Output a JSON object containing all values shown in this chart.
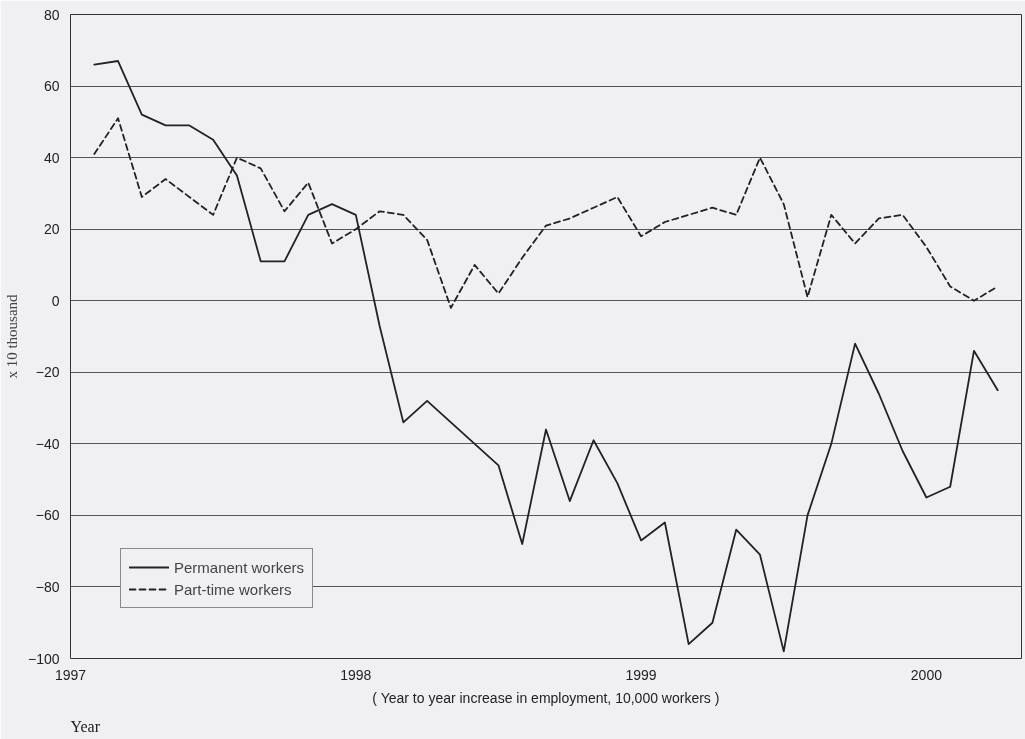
{
  "chart_data": {
    "type": "line",
    "ylabel": "x 10 thousand",
    "xlabel": "Year",
    "annotations": [
      "( Year to year increase in employment, 10,000 workers )"
    ],
    "x": [
      "1997-02",
      "1997-03",
      "1997-04",
      "1997-05",
      "1997-06",
      "1997-07",
      "1997-08",
      "1997-09",
      "1997-10",
      "1997-11",
      "1997-12",
      "1998-01",
      "1998-02",
      "1998-03",
      "1998-04",
      "1998-05",
      "1998-06",
      "1998-07",
      "1998-08",
      "1998-09",
      "1998-10",
      "1998-11",
      "1998-12",
      "1999-01",
      "1999-02",
      "1999-03",
      "1999-04",
      "1999-05",
      "1999-06",
      "1999-07",
      "1999-08",
      "1999-09",
      "1999-10",
      "1999-11",
      "1999-12",
      "2000-01",
      "2000-02",
      "2000-03",
      "2000-04"
    ],
    "series": [
      {
        "name": "Permanent workers",
        "color": "#222222",
        "line_style": "solid",
        "values": [
          66,
          67,
          52,
          49,
          49,
          45,
          35,
          11,
          11,
          24,
          27,
          24,
          -7,
          -34,
          -28,
          -34,
          -40,
          -46,
          -68,
          -36,
          -56,
          -39,
          -51,
          -67,
          -62,
          -96,
          -90,
          -64,
          -71,
          -98,
          -60,
          -40,
          -12,
          -26,
          -42,
          -55,
          -52,
          -14,
          -25
        ]
      },
      {
        "name": "Part-time workers",
        "color": "#222222",
        "line_style": "dashed",
        "values": [
          41,
          51,
          29,
          34,
          29,
          24,
          40,
          37,
          25,
          33,
          16,
          20,
          25,
          24,
          17,
          -2,
          10,
          2,
          12,
          21,
          23,
          26,
          29,
          18,
          22,
          24,
          26,
          24,
          40,
          27,
          1,
          24,
          16,
          23,
          24,
          15,
          4,
          0,
          4
        ]
      }
    ],
    "xlim": [
      "1997-01",
      "2000-05"
    ],
    "xticks": [
      "1997",
      "1998",
      "1999",
      "2000"
    ],
    "ylim": [
      -100,
      80
    ],
    "yticks": [
      -100,
      -80,
      -60,
      -40,
      -20,
      0,
      20,
      40,
      60,
      80
    ],
    "grid": "y",
    "legend": "bottom left"
  }
}
